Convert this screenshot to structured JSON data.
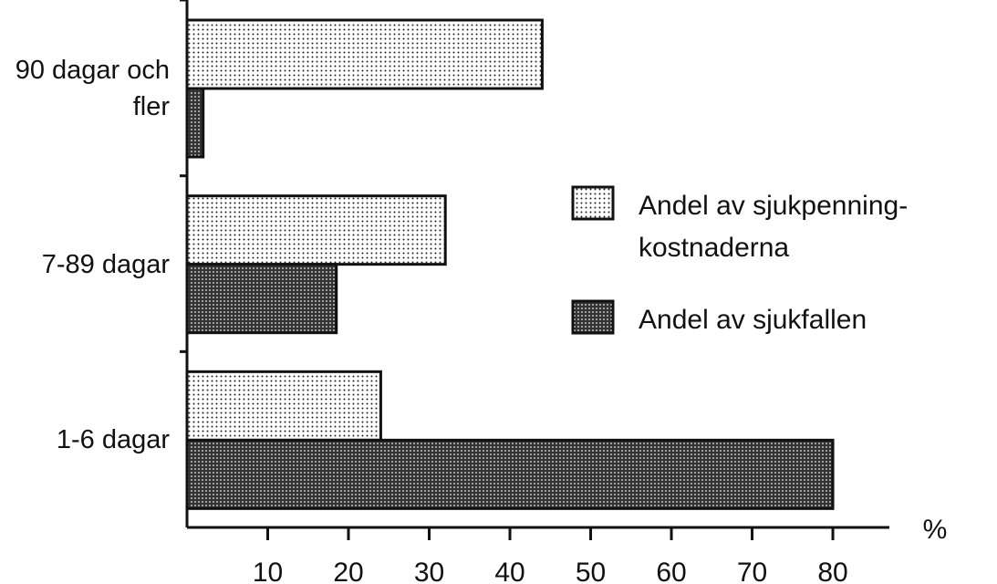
{
  "chart_data": {
    "type": "barh",
    "categories": [
      "90 dagar och fler",
      "7-89 dagar",
      "1-6 dagar"
    ],
    "series": [
      {
        "name": "Andel av sjukpenning-kostnaderna",
        "color": "#ffffff",
        "values": [
          44,
          32,
          24
        ]
      },
      {
        "name": "Andel av sjukfallen",
        "color": "#7a7a7a",
        "values": [
          2,
          18.5,
          80
        ]
      }
    ],
    "xlabel": "%",
    "xlim": [
      0,
      87
    ],
    "xticks": [
      10,
      20,
      30,
      40,
      50,
      60,
      70,
      80
    ]
  }
}
